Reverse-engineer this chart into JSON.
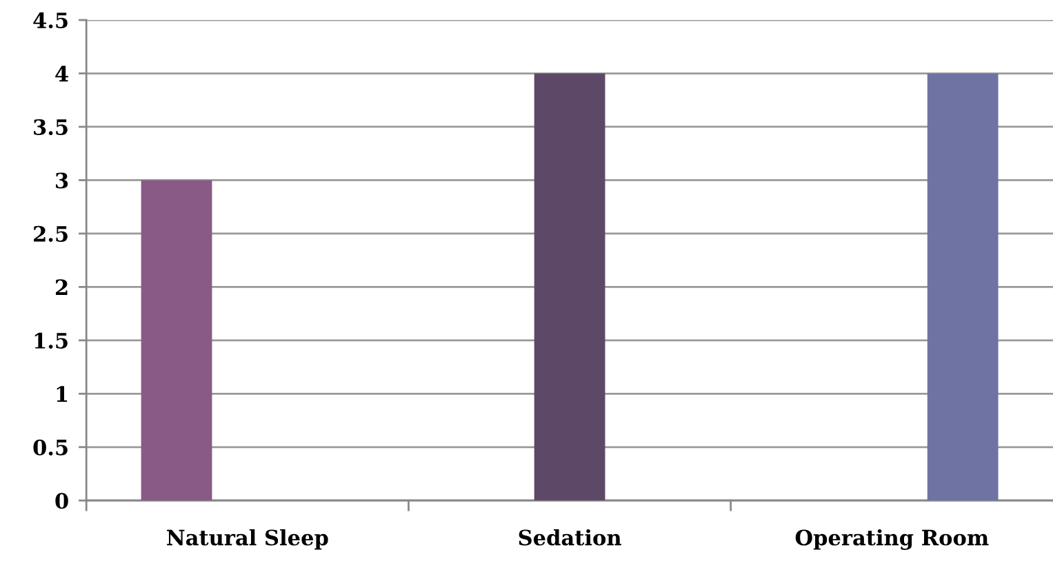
{
  "chart_data": {
    "type": "bar",
    "categories": [
      "Natural Sleep",
      "Sedation",
      "Operating Room"
    ],
    "series": [
      {
        "color": "#8a5a87",
        "values": [
          3,
          null,
          null
        ]
      },
      {
        "color": "#5e4868",
        "values": [
          null,
          4,
          null
        ]
      },
      {
        "color": "#6f73a4",
        "values": [
          null,
          null,
          4
        ]
      }
    ],
    "ylim": [
      0,
      4.5
    ],
    "yticks": [
      0,
      0.5,
      1,
      1.5,
      2,
      2.5,
      3,
      3.5,
      4,
      4.5
    ],
    "grid": "y",
    "legend": false
  }
}
